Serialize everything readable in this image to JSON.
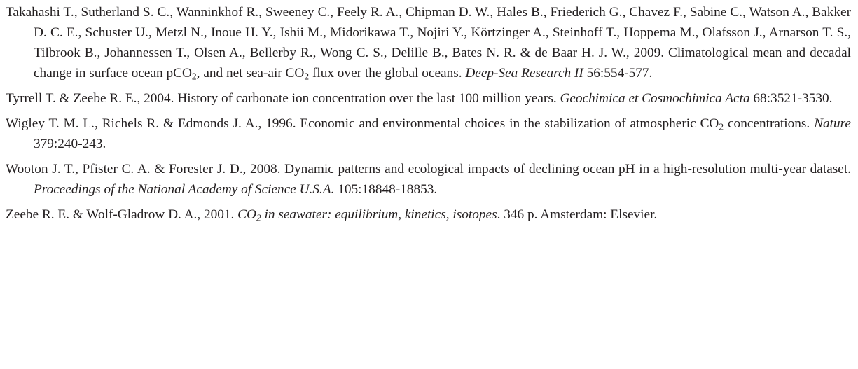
{
  "references": [
    {
      "segments": [
        {
          "text": "Takahashi T., Sutherland S. C., Wanninkhof R., Sweeney C., Feely R. A., Chipman D. W., Hales B., Friederich G., Chavez F., Sabine C., Watson A., Bakker D. C. E., Schuster U., Metzl N., Inoue H. Y., Ishii M., Midorikawa T., Nojiri Y., Körtzinger A., Steinhoff T., Hoppema M., Olafsson J., Arnarson T. S., Tilbrook B., Johannessen T., Olsen A., Bellerby R., Wong C. S., Delille B., Bates N. R. & de Baar H. J. W., 2009. Climatological mean and decadal change in surface ocean pCO"
        },
        {
          "text": "2",
          "style": "sub"
        },
        {
          "text": ", and net sea-air CO"
        },
        {
          "text": "2",
          "style": "sub"
        },
        {
          "text": " flux over the global oceans. "
        },
        {
          "text": "Deep-Sea Research II",
          "style": "italic"
        },
        {
          "text": " 56:554-577."
        }
      ]
    },
    {
      "segments": [
        {
          "text": "Tyrrell T. & Zeebe R. E., 2004. History of carbonate ion concentration over the last 100 million years. "
        },
        {
          "text": "Geochimica et Cosmochimica Acta",
          "style": "italic"
        },
        {
          "text": " 68:3521-3530."
        }
      ]
    },
    {
      "segments": [
        {
          "text": "Wigley T. M. L., Richels R. & Edmonds J. A., 1996. Economic and environmental choices in the stabilization of atmospheric CO"
        },
        {
          "text": "2",
          "style": "sub"
        },
        {
          "text": " concentrations. "
        },
        {
          "text": "Nature",
          "style": "italic"
        },
        {
          "text": " 379:240-243."
        }
      ]
    },
    {
      "segments": [
        {
          "text": "Wooton J. T., Pfister C. A. & Forester J. D., 2008. Dynamic patterns and ecological impacts of declining ocean pH in a high-resolution multi-year dataset. "
        },
        {
          "text": "Proceedings of the National Academy of Science U.S.A.",
          "style": "italic"
        },
        {
          "text": " 105:18848-18853."
        }
      ]
    },
    {
      "segments": [
        {
          "text": "Zeebe R. E. & Wolf-Gladrow D. A., 2001. "
        },
        {
          "text": "CO",
          "style": "italic"
        },
        {
          "text": "2",
          "style": "italic-sub"
        },
        {
          "text": " in seawater: equilibrium, kinetics, isotopes",
          "style": "italic"
        },
        {
          "text": ". 346 p. Amsterdam: Elsevier."
        }
      ]
    }
  ]
}
